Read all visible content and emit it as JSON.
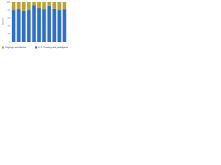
{
  "chart_data": {
    "type": "stacked-bar",
    "y_label": "Percent",
    "categories": [
      null,
      null,
      null,
      null,
      null,
      null,
      null,
      null,
      null,
      null,
      null
    ],
    "series": [
      {
        "name": "U.S. Treasury and participants",
        "color": "#2e6fc4",
        "values": [
          80,
          82,
          78,
          80,
          92,
          85,
          82,
          90,
          83,
          80,
          82
        ]
      },
      {
        "name": "Employer contribution",
        "color": "#b8a23a",
        "values": [
          20,
          18,
          22,
          20,
          8,
          15,
          18,
          10,
          17,
          20,
          18
        ]
      }
    ],
    "ylim": [
      0,
      100
    ],
    "yticks": [
      0,
      20,
      40,
      60,
      80,
      100
    ],
    "grid": true
  }
}
